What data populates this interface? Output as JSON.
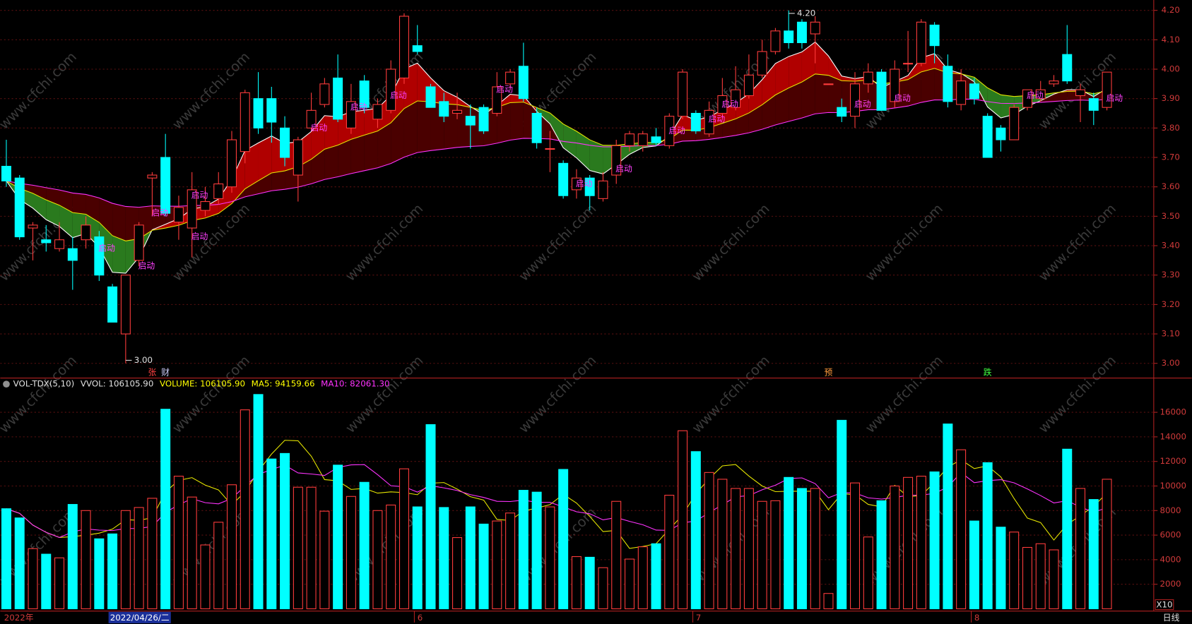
{
  "chart_data": [
    {
      "type": "candlestick",
      "open": [
        3.67,
        3.63,
        3.46,
        3.42,
        3.39,
        3.39,
        3.42,
        3.43,
        3.26,
        3.1,
        3.35,
        3.63,
        3.7,
        3.48,
        3.46,
        3.52,
        3.56,
        3.6,
        3.72,
        3.9,
        3.9,
        3.8,
        3.64,
        3.8,
        3.88,
        3.97,
        3.8,
        3.96,
        3.83,
        3.86,
        3.97,
        4.08,
        3.94,
        3.89,
        3.85,
        3.84,
        3.87,
        3.85,
        3.95,
        4.01,
        3.85,
        3.73,
        3.68,
        3.59,
        3.63,
        3.56,
        3.64,
        3.74,
        3.74,
        3.77,
        3.74,
        3.84,
        3.85,
        3.78,
        3.85,
        3.87,
        3.91,
        3.98,
        4.06,
        4.13,
        4.16,
        4.12,
        3.95,
        3.87,
        3.84,
        3.95,
        3.99,
        3.89,
        4.02,
        4.02,
        4.15,
        4.01,
        3.88,
        3.95,
        3.84,
        3.8,
        3.76,
        3.87,
        3.9,
        3.95,
        4.05,
        3.91,
        3.9,
        3.87
      ],
      "high": [
        3.76,
        3.64,
        3.48,
        3.47,
        3.48,
        3.43,
        3.5,
        3.45,
        3.27,
        3.3,
        3.48,
        3.65,
        3.78,
        3.57,
        3.65,
        3.6,
        3.65,
        3.79,
        3.93,
        3.99,
        3.94,
        3.84,
        3.77,
        3.92,
        3.97,
        4.05,
        3.95,
        3.98,
        3.9,
        4.03,
        4.19,
        4.15,
        3.95,
        3.92,
        3.92,
        3.88,
        3.88,
        3.99,
        4.0,
        4.09,
        3.87,
        3.79,
        3.69,
        3.66,
        3.64,
        3.65,
        3.76,
        3.79,
        3.79,
        3.8,
        3.85,
        4.0,
        3.86,
        3.89,
        3.97,
        4.01,
        4.05,
        4.1,
        4.14,
        4.2,
        4.17,
        4.18,
        3.95,
        3.9,
        3.99,
        4.02,
        4.0,
        4.03,
        4.13,
        4.17,
        4.16,
        4.05,
        4.0,
        3.97,
        3.85,
        3.81,
        3.88,
        3.93,
        3.96,
        3.98,
        4.15,
        3.95,
        3.92,
        3.99
      ],
      "low": [
        3.6,
        3.42,
        3.35,
        3.38,
        3.38,
        3.25,
        3.39,
        3.28,
        3.14,
        3.0,
        3.33,
        3.5,
        3.5,
        3.42,
        3.36,
        3.5,
        3.54,
        3.58,
        3.68,
        3.78,
        3.75,
        3.67,
        3.55,
        3.79,
        3.87,
        3.82,
        3.78,
        3.85,
        3.8,
        3.85,
        3.95,
        4.05,
        3.87,
        3.82,
        3.83,
        3.73,
        3.78,
        3.84,
        3.93,
        3.89,
        3.73,
        3.65,
        3.56,
        3.56,
        3.52,
        3.55,
        3.61,
        3.72,
        3.72,
        3.74,
        3.73,
        3.83,
        3.78,
        3.77,
        3.84,
        3.86,
        3.9,
        3.97,
        4.05,
        4.07,
        4.07,
        4.02,
        3.95,
        3.82,
        3.8,
        3.92,
        3.86,
        3.87,
        3.99,
        4.01,
        4.02,
        3.87,
        3.86,
        3.88,
        3.7,
        3.72,
        3.76,
        3.86,
        3.89,
        3.94,
        3.95,
        3.82,
        3.81,
        3.86
      ],
      "close": [
        3.62,
        3.43,
        3.47,
        3.41,
        3.42,
        3.35,
        3.47,
        3.3,
        3.14,
        3.3,
        3.47,
        3.64,
        3.51,
        3.53,
        3.59,
        3.55,
        3.61,
        3.76,
        3.92,
        3.8,
        3.82,
        3.7,
        3.76,
        3.86,
        3.95,
        3.83,
        3.89,
        3.87,
        3.88,
        4.0,
        4.18,
        4.06,
        3.87,
        3.84,
        3.86,
        3.81,
        3.79,
        3.94,
        3.99,
        3.9,
        3.75,
        3.73,
        3.57,
        3.63,
        3.57,
        3.62,
        3.74,
        3.78,
        3.78,
        3.75,
        3.84,
        3.99,
        3.79,
        3.86,
        3.91,
        3.93,
        3.98,
        4.06,
        4.13,
        4.09,
        4.09,
        4.16,
        3.95,
        3.84,
        3.95,
        3.99,
        3.86,
        4.0,
        4.02,
        4.16,
        4.08,
        3.89,
        3.96,
        3.9,
        3.7,
        3.76,
        3.87,
        3.93,
        3.93,
        3.96,
        3.96,
        3.93,
        3.86,
        3.99
      ],
      "up_color": "#ff3c3c",
      "down_color": "#00ffff",
      "ylim": [
        2.95,
        4.23
      ],
      "yticks": [
        {
          "value": 3,
          "label": "3.00"
        },
        {
          "value": 3.1,
          "label": "3.10"
        },
        {
          "value": 3.2,
          "label": "3.20"
        },
        {
          "value": 3.3,
          "label": "3.30"
        },
        {
          "value": 3.4,
          "label": "3.40"
        },
        {
          "value": 3.5,
          "label": "3.50"
        },
        {
          "value": 3.6,
          "label": "3.60"
        },
        {
          "value": 3.7,
          "label": "3.70"
        },
        {
          "value": 3.8,
          "label": "3.80"
        },
        {
          "value": 3.9,
          "label": "3.90"
        },
        {
          "value": 4,
          "label": "4.00"
        },
        {
          "value": 4.1,
          "label": "4.10"
        },
        {
          "value": 4.2,
          "label": "4.20"
        }
      ],
      "grid": true,
      "annotations": [
        {
          "text": "启动",
          "index": 7,
          "price": 3.39
        },
        {
          "text": "启动",
          "index": 10,
          "price": 3.33
        },
        {
          "text": "启动",
          "index": 11,
          "price": 3.51
        },
        {
          "text": "启动",
          "index": 14,
          "price": 3.57
        },
        {
          "text": "启动",
          "index": 14,
          "price": 3.43
        },
        {
          "text": "启动",
          "index": 23,
          "price": 3.8
        },
        {
          "text": "启动",
          "index": 26,
          "price": 3.87
        },
        {
          "text": "启动",
          "index": 29,
          "price": 3.91
        },
        {
          "text": "启动",
          "index": 37,
          "price": 3.93
        },
        {
          "text": "启动",
          "index": 43,
          "price": 3.61
        },
        {
          "text": "启动",
          "index": 46,
          "price": 3.66
        },
        {
          "text": "启动",
          "index": 50,
          "price": 3.79
        },
        {
          "text": "启动",
          "index": 53,
          "price": 3.83
        },
        {
          "text": "启动",
          "index": 54,
          "price": 3.88
        },
        {
          "text": "启动",
          "index": 64,
          "price": 3.88
        },
        {
          "text": "启动",
          "index": 67,
          "price": 3.9
        },
        {
          "text": "启动",
          "index": 77,
          "price": 3.91
        },
        {
          "text": "启动",
          "index": 83,
          "price": 3.9
        }
      ],
      "extremes": [
        {
          "label": "4.20",
          "index": 59,
          "value": 4.2
        },
        {
          "label": "3.00",
          "index": 9,
          "value": 3
        }
      ],
      "markers": [
        {
          "text": "张",
          "index": 11,
          "color": "#ff4040"
        },
        {
          "text": "财",
          "index": 12,
          "color": "#d0d0ff"
        },
        {
          "text": "预",
          "index": 62,
          "color": "#ff9a3c"
        },
        {
          "text": "跌",
          "index": 74,
          "color": "#40ff40"
        }
      ]
    },
    {
      "type": "bar",
      "header": [
        {
          "text": "VOL-TDX(5,10)",
          "color": "#e0e0e0"
        },
        {
          "text": "VVOL: 106105.90",
          "color": "#e0e0e0"
        },
        {
          "text": "VOLUME: 106105.90",
          "color": "#ffff00"
        },
        {
          "text": "MA5: 94159.66",
          "color": "#ffff00"
        },
        {
          "text": "MA10: 82061.30",
          "color": "#ff33ff"
        }
      ],
      "values": [
        8150,
        7400,
        4900,
        4450,
        4150,
        8500,
        8000,
        5700,
        6100,
        8000,
        8250,
        9000,
        16250,
        10800,
        9100,
        5200,
        7050,
        10100,
        16200,
        17450,
        12200,
        12650,
        9900,
        9900,
        7950,
        11700,
        9150,
        10300,
        8000,
        8450,
        11400,
        8300,
        15000,
        8250,
        5800,
        8300,
        6900,
        7150,
        7800,
        9650,
        9500,
        8300,
        11350,
        4250,
        4200,
        3350,
        8750,
        4050,
        5050,
        5300,
        9250,
        14500,
        12800,
        11100,
        10550,
        9800,
        9800,
        8750,
        8800,
        10700,
        9800,
        9800,
        1250,
        15350,
        10250,
        5850,
        8800,
        10000,
        10700,
        10800,
        11150,
        15050,
        12950,
        7150,
        11900,
        6650,
        6250,
        5000,
        5300,
        4800,
        13000,
        9800,
        8900,
        10550
      ],
      "ylim": [
        0,
        17800
      ],
      "yticks": [
        2000,
        4000,
        6000,
        8000,
        10000,
        12000,
        14000,
        16000
      ],
      "grid": true,
      "unit_label": "X10"
    }
  ],
  "x_labels": [
    {
      "label": "2022年",
      "index": 0
    },
    {
      "label": "2022/04/26/二",
      "index": 10
    },
    {
      "label": "6",
      "index": 31
    },
    {
      "label": "7",
      "index": 52
    },
    {
      "label": "8",
      "index": 73
    }
  ],
  "period": "日线",
  "watermark": "www.cfchi.com"
}
